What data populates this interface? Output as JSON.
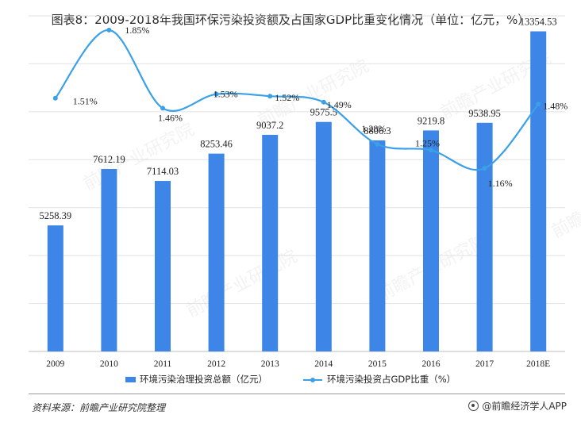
{
  "title": "图表8：2009-2018年我国环保污染投资额及占国家GDP比重变化情况（单位：亿元，%）",
  "source": "资料来源：前瞻产业研究院整理",
  "brand": "@前瞻经济学人APP",
  "watermark": "前瞻产业研究院",
  "chart_data": {
    "type": "bar",
    "categories": [
      "2009",
      "2010",
      "2011",
      "2012",
      "2013",
      "2014",
      "2015",
      "2016",
      "2017",
      "2018E"
    ],
    "series": [
      {
        "name": "环境污染治理投资总额（亿元）",
        "type": "bar",
        "color": "#3d85e6",
        "values": [
          5258.39,
          7612.19,
          7114.03,
          8253.46,
          9037.2,
          9575.5,
          8806.3,
          9219.8,
          9538.95,
          13354.53
        ],
        "labels": [
          "5258.39",
          "7612.19",
          "7114.03",
          "8253.46",
          "9037.2",
          "9575.5",
          "8806.3",
          "9219.8",
          "9538.95",
          "13354.53"
        ]
      },
      {
        "name": "环境污染投资占GDP比重（%）",
        "type": "line",
        "color": "#3aa0e8",
        "values": [
          1.51,
          1.85,
          1.46,
          1.53,
          1.52,
          1.49,
          1.28,
          1.25,
          1.16,
          1.48
        ],
        "labels": [
          "1.51%",
          "1.85%",
          "1.46%",
          "1.53%",
          "1.52%",
          "1.49%",
          "1.28%",
          "1.25%",
          "1.16%",
          "1.48%"
        ]
      }
    ],
    "ylim": [
      0,
      14000
    ],
    "y2lim": [
      0,
      2.0
    ],
    "grid": true,
    "legend": "bottom-center"
  }
}
